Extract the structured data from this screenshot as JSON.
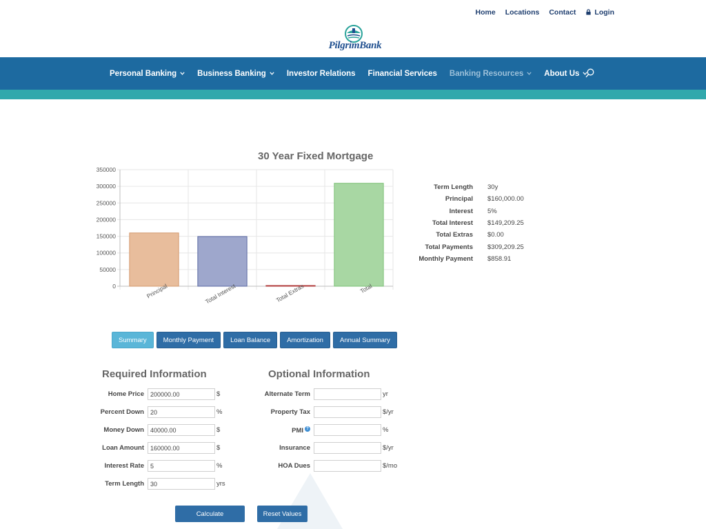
{
  "top_links": {
    "home": "Home",
    "locations": "Locations",
    "contact": "Contact",
    "login": "Login"
  },
  "logo": {
    "text": "PilgrimBank"
  },
  "nav": {
    "items": [
      {
        "label": "Personal Banking",
        "has_dropdown": true
      },
      {
        "label": "Business Banking",
        "has_dropdown": true
      },
      {
        "label": "Investor Relations",
        "has_dropdown": false
      },
      {
        "label": "Financial Services",
        "has_dropdown": false
      },
      {
        "label": "Banking Resources",
        "has_dropdown": true
      },
      {
        "label": "About Us",
        "has_dropdown": true
      }
    ]
  },
  "chart_data": {
    "type": "bar",
    "title": "30 Year Fixed Mortgage",
    "categories": [
      "Principal",
      "Total Interest",
      "Total Extras",
      "Total"
    ],
    "values": [
      160000,
      149209.25,
      0,
      309209.25
    ],
    "colors": [
      "#e8bd9c",
      "#9ea7cc",
      "#e3a8a8",
      "#a8d7a3"
    ],
    "stroke_colors": [
      "#d49a6e",
      "#5b6aa3",
      "#b03a3a",
      "#7ec178"
    ],
    "ylim": [
      0,
      350000
    ],
    "yticks": [
      "0",
      "50000",
      "100000",
      "150000",
      "200000",
      "250000",
      "300000",
      "350000"
    ],
    "grid": true
  },
  "summary": [
    {
      "label": "Term Length",
      "value": "30y"
    },
    {
      "label": "Principal",
      "value": "$160,000.00"
    },
    {
      "label": "Interest",
      "value": "5%"
    },
    {
      "label": "Total Interest",
      "value": "$149,209.25"
    },
    {
      "label": "Total Extras",
      "value": "$0.00"
    },
    {
      "label": "Total Payments",
      "value": "$309,209.25"
    },
    {
      "label": "Monthly Payment",
      "value": "$858.91"
    }
  ],
  "tabs": [
    {
      "label": "Summary",
      "active": true
    },
    {
      "label": "Monthly Payment",
      "active": false
    },
    {
      "label": "Loan Balance",
      "active": false
    },
    {
      "label": "Amortization",
      "active": false
    },
    {
      "label": "Annual Summary",
      "active": false
    }
  ],
  "required": {
    "heading": "Required Information",
    "fields": [
      {
        "label": "Home Price",
        "value": "200000.00",
        "unit": "$"
      },
      {
        "label": "Percent Down",
        "value": "20",
        "unit": "%"
      },
      {
        "label": "Money Down",
        "value": "40000.00",
        "unit": "$"
      },
      {
        "label": "Loan Amount",
        "value": "160000.00",
        "unit": "$"
      },
      {
        "label": "Interest Rate",
        "value": "5",
        "unit": "%"
      },
      {
        "label": "Term Length",
        "value": "30",
        "unit": "yrs"
      }
    ]
  },
  "optional": {
    "heading": "Optional Information",
    "fields": [
      {
        "label": "Alternate Term",
        "value": "",
        "unit": "yr"
      },
      {
        "label": "Property Tax",
        "value": "",
        "unit": "$/yr"
      },
      {
        "label": "PMI",
        "value": "",
        "unit": "%",
        "help": "?"
      },
      {
        "label": "Insurance",
        "value": "",
        "unit": "$/yr"
      },
      {
        "label": "HOA Dues",
        "value": "",
        "unit": "$/mo"
      }
    ]
  },
  "buttons": {
    "calculate": "Calculate",
    "reset": "Reset Values"
  },
  "colors": {
    "nav": "#1d6aa0",
    "band": "#31a8ac",
    "button": "#2f6da6",
    "tab_active": "#5ab6d8"
  }
}
